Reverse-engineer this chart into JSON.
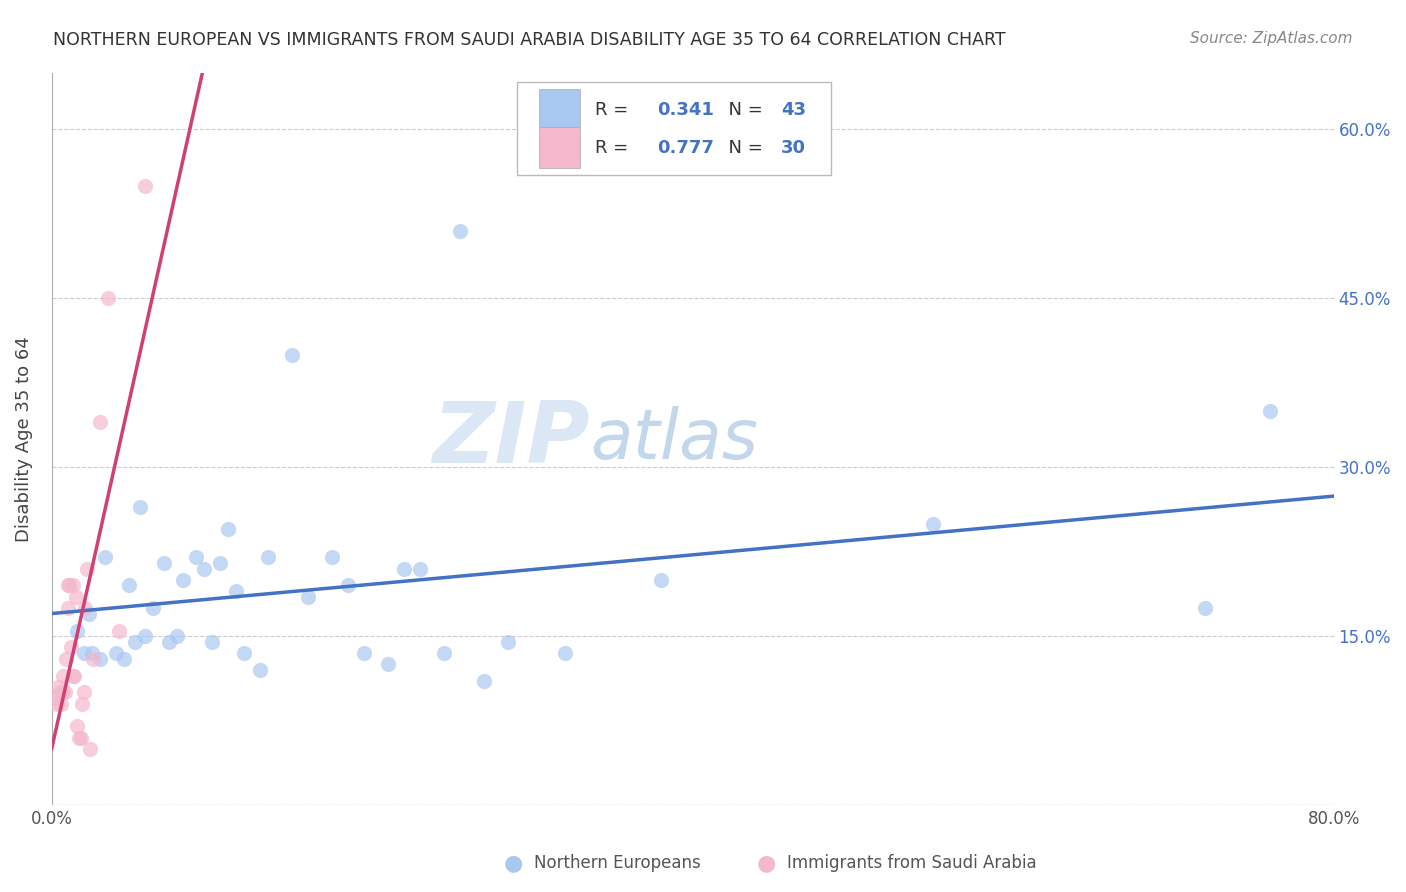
{
  "title": "NORTHERN EUROPEAN VS IMMIGRANTS FROM SAUDI ARABIA DISABILITY AGE 35 TO 64 CORRELATION CHART",
  "source": "Source: ZipAtlas.com",
  "ylabel": "Disability Age 35 to 64",
  "xlim": [
    0.0,
    0.8
  ],
  "ylim": [
    0.0,
    0.65
  ],
  "xtick_positions": [
    0.0,
    0.1,
    0.2,
    0.3,
    0.4,
    0.5,
    0.6,
    0.7,
    0.8
  ],
  "xticklabels": [
    "0.0%",
    "",
    "",
    "",
    "",
    "",
    "",
    "",
    "80.0%"
  ],
  "ytick_positions": [
    0.0,
    0.15,
    0.3,
    0.45,
    0.6
  ],
  "yticklabels_right": [
    "",
    "15.0%",
    "30.0%",
    "45.0%",
    "60.0%"
  ],
  "blue_fill": "#A8C8F0",
  "pink_fill": "#F4B8CC",
  "blue_line_color": "#4472C4",
  "pink_line_color": "#D04070",
  "blue_text_color": "#4472C4",
  "R_blue": "0.341",
  "N_blue": "43",
  "R_pink": "0.777",
  "N_pink": "30",
  "watermark_zip": "ZIP",
  "watermark_atlas": "atlas",
  "watermark_zip_color": "#C5D8F0",
  "watermark_atlas_color": "#9ABCE0",
  "blue_points_x": [
    0.016,
    0.02,
    0.023,
    0.025,
    0.03,
    0.033,
    0.04,
    0.045,
    0.048,
    0.052,
    0.055,
    0.058,
    0.063,
    0.07,
    0.073,
    0.078,
    0.082,
    0.09,
    0.095,
    0.1,
    0.105,
    0.11,
    0.115,
    0.12,
    0.13,
    0.135,
    0.15,
    0.16,
    0.175,
    0.185,
    0.195,
    0.21,
    0.22,
    0.23,
    0.245,
    0.255,
    0.27,
    0.285,
    0.32,
    0.38,
    0.55,
    0.72,
    0.76
  ],
  "blue_points_y": [
    0.155,
    0.135,
    0.17,
    0.135,
    0.13,
    0.22,
    0.135,
    0.13,
    0.195,
    0.145,
    0.265,
    0.15,
    0.175,
    0.215,
    0.145,
    0.15,
    0.2,
    0.22,
    0.21,
    0.145,
    0.215,
    0.245,
    0.19,
    0.135,
    0.12,
    0.22,
    0.4,
    0.185,
    0.22,
    0.195,
    0.135,
    0.125,
    0.21,
    0.21,
    0.135,
    0.51,
    0.11,
    0.145,
    0.135,
    0.2,
    0.25,
    0.175,
    0.35
  ],
  "pink_points_x": [
    0.002,
    0.003,
    0.004,
    0.005,
    0.006,
    0.007,
    0.007,
    0.008,
    0.009,
    0.01,
    0.01,
    0.011,
    0.012,
    0.013,
    0.013,
    0.014,
    0.015,
    0.016,
    0.017,
    0.018,
    0.019,
    0.02,
    0.021,
    0.022,
    0.024,
    0.026,
    0.03,
    0.035,
    0.042,
    0.058
  ],
  "pink_points_y": [
    0.095,
    0.09,
    0.105,
    0.1,
    0.09,
    0.1,
    0.115,
    0.1,
    0.13,
    0.175,
    0.195,
    0.195,
    0.14,
    0.195,
    0.115,
    0.115,
    0.185,
    0.07,
    0.06,
    0.06,
    0.09,
    0.1,
    0.175,
    0.21,
    0.05,
    0.13,
    0.34,
    0.45,
    0.155,
    0.55
  ],
  "background_color": "#ffffff",
  "grid_color": "#cccccc",
  "dot_size": 120
}
